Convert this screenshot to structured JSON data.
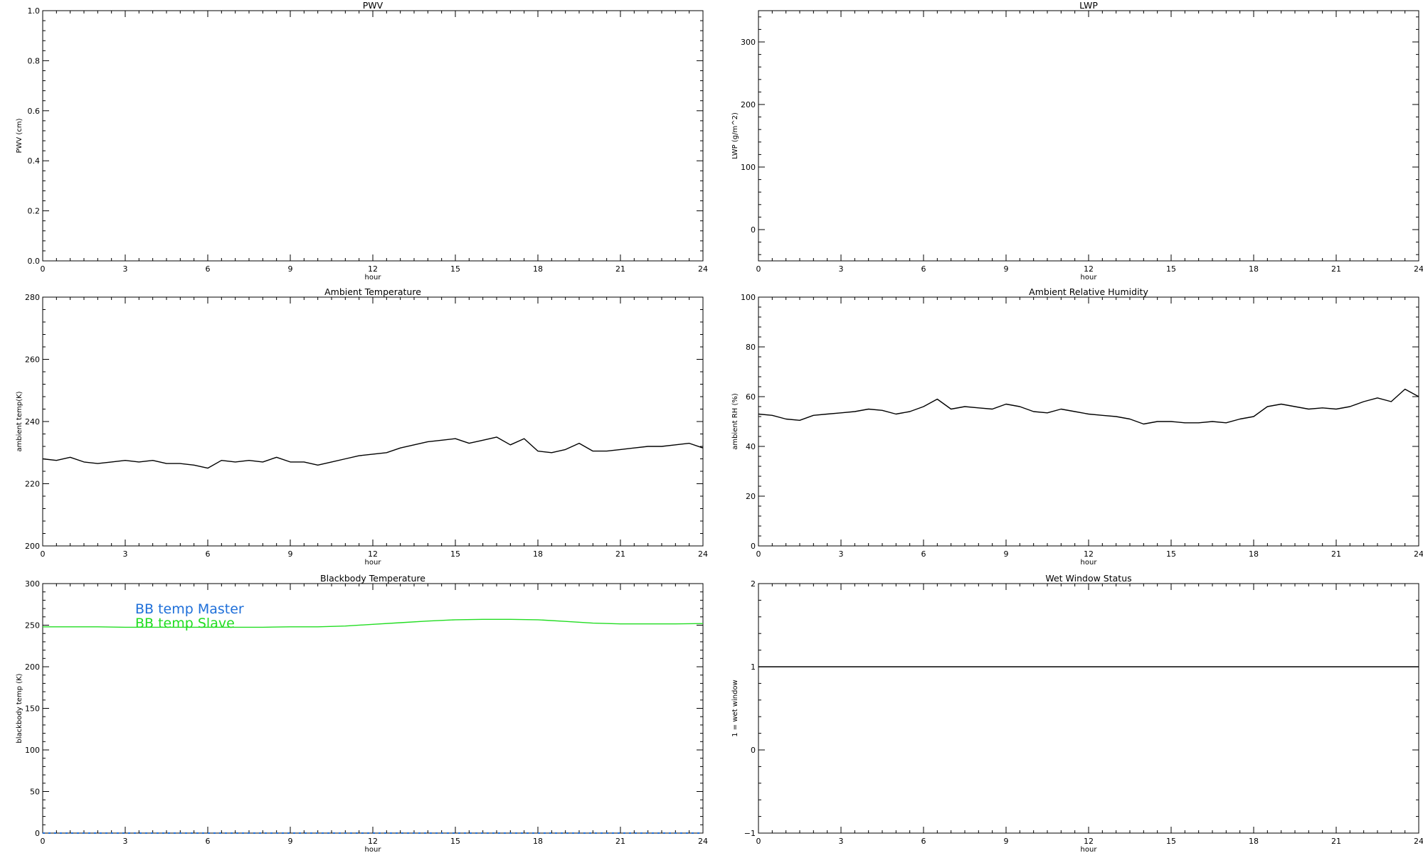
{
  "chart_data": [
    {
      "id": "pwv",
      "type": "line",
      "title": "PWV",
      "xlabel": "hour",
      "ylabel": "PWV (cm)",
      "xlim": [
        0,
        24
      ],
      "ylim": [
        0,
        1
      ],
      "xticks": [
        0,
        3,
        6,
        9,
        12,
        15,
        18,
        21,
        24
      ],
      "xticklabels": [
        "0",
        "3",
        "6",
        "9",
        "12",
        "15",
        "18",
        "21",
        "24"
      ],
      "yticks": [
        0,
        0.2,
        0.4,
        0.6,
        0.8,
        1.0
      ],
      "yticklabels": [
        "0.0",
        "0.2",
        "0.4",
        "0.6",
        "0.8",
        "1.0"
      ],
      "grid": false,
      "series": []
    },
    {
      "id": "lwp",
      "type": "line",
      "title": "LWP",
      "xlabel": "hour",
      "ylabel": "LWP (g/m^2)",
      "xlim": [
        0,
        24
      ],
      "ylim": [
        -50,
        350
      ],
      "xticks": [
        0,
        3,
        6,
        9,
        12,
        15,
        18,
        21,
        24
      ],
      "xticklabels": [
        "0",
        "3",
        "6",
        "9",
        "12",
        "15",
        "18",
        "21",
        "24"
      ],
      "yticks": [
        0,
        100,
        200,
        300
      ],
      "yticklabels": [
        "0",
        "100",
        "200",
        "300"
      ],
      "grid": false,
      "series": []
    },
    {
      "id": "ambient-temperature",
      "type": "line",
      "title": "Ambient Temperature",
      "xlabel": "hour",
      "ylabel": "ambient temp(K)",
      "xlim": [
        0,
        24
      ],
      "ylim": [
        200,
        280
      ],
      "xticks": [
        0,
        3,
        6,
        9,
        12,
        15,
        18,
        21,
        24
      ],
      "xticklabels": [
        "0",
        "3",
        "6",
        "9",
        "12",
        "15",
        "18",
        "21",
        "24"
      ],
      "yticks": [
        200,
        220,
        240,
        260,
        280
      ],
      "yticklabels": [
        "200",
        "220",
        "240",
        "260",
        "280"
      ],
      "grid": false,
      "series": [
        {
          "color": "#000000",
          "x": [
            0,
            0.5,
            1.0,
            1.5,
            2.0,
            2.5,
            3.0,
            3.5,
            4.0,
            4.5,
            5.0,
            5.5,
            6.0,
            6.5,
            7.0,
            7.5,
            8.0,
            8.5,
            9.0,
            9.5,
            10.0,
            10.5,
            11.0,
            11.5,
            12.0,
            12.5,
            13.0,
            13.5,
            14.0,
            14.5,
            15.0,
            15.5,
            16.0,
            16.5,
            17.0,
            17.5,
            18.0,
            18.5,
            19.0,
            19.5,
            20.0,
            20.5,
            21.0,
            21.5,
            22.0,
            22.5,
            23.0,
            23.5,
            24.0
          ],
          "y": [
            228,
            227.5,
            228.5,
            227,
            226.5,
            227,
            227.5,
            227,
            227.5,
            226.5,
            226.5,
            226,
            225,
            227.5,
            227,
            227.5,
            227,
            228.5,
            227,
            227,
            226,
            227,
            228,
            229,
            229.5,
            230,
            231.5,
            232.5,
            233.5,
            234,
            234.5,
            233,
            234,
            235,
            232.5,
            234.5,
            230.5,
            230,
            231,
            233,
            230.5,
            230.5,
            231,
            231.5,
            232,
            232,
            232.5,
            233,
            231.5
          ]
        }
      ]
    },
    {
      "id": "ambient-relative-humidity",
      "type": "line",
      "title": "Ambient Relative Humidity",
      "xlabel": "hour",
      "ylabel": "ambient RH (%)",
      "xlim": [
        0,
        24
      ],
      "ylim": [
        0,
        100
      ],
      "xticks": [
        0,
        3,
        6,
        9,
        12,
        15,
        18,
        21,
        24
      ],
      "xticklabels": [
        "0",
        "3",
        "6",
        "9",
        "12",
        "15",
        "18",
        "21",
        "24"
      ],
      "yticks": [
        0,
        20,
        40,
        60,
        80,
        100
      ],
      "yticklabels": [
        "0",
        "20",
        "40",
        "60",
        "80",
        "100"
      ],
      "grid": false,
      "series": [
        {
          "color": "#000000",
          "x": [
            0,
            0.5,
            1.0,
            1.5,
            2.0,
            2.5,
            3.0,
            3.5,
            4.0,
            4.5,
            5.0,
            5.5,
            6.0,
            6.5,
            7.0,
            7.5,
            8.0,
            8.5,
            9.0,
            9.5,
            10.0,
            10.5,
            11.0,
            11.5,
            12.0,
            12.5,
            13.0,
            13.5,
            14.0,
            14.5,
            15.0,
            15.5,
            16.0,
            16.5,
            17.0,
            17.5,
            18.0,
            18.5,
            19.0,
            19.5,
            20.0,
            20.5,
            21.0,
            21.5,
            22.0,
            22.5,
            23.0,
            23.5,
            24.0
          ],
          "y": [
            53,
            52.5,
            51,
            50.5,
            52.5,
            53,
            53.5,
            54,
            55,
            54.5,
            53,
            54,
            56,
            59,
            55,
            56,
            55.5,
            55,
            57,
            56,
            54,
            53.5,
            55,
            54,
            53,
            52.5,
            52,
            51,
            49,
            50,
            50,
            49.5,
            49.5,
            50,
            49.5,
            51,
            52,
            56,
            57,
            56,
            55,
            55.5,
            55,
            56,
            58,
            59.5,
            58,
            63,
            60
          ]
        }
      ]
    },
    {
      "id": "blackbody-temperature",
      "type": "line",
      "title": "Blackbody Temperature",
      "xlabel": "hour",
      "ylabel": "blackbody temp (K)",
      "xlim": [
        0,
        24
      ],
      "ylim": [
        0,
        300
      ],
      "xticks": [
        0,
        3,
        6,
        9,
        12,
        15,
        18,
        21,
        24
      ],
      "xticklabels": [
        "0",
        "3",
        "6",
        "9",
        "12",
        "15",
        "18",
        "21",
        "24"
      ],
      "yticks": [
        0,
        50,
        100,
        150,
        200,
        250,
        300
      ],
      "yticklabels": [
        "0",
        "50",
        "100",
        "150",
        "200",
        "250",
        "300"
      ],
      "grid": false,
      "legend": "upper-left",
      "series": [
        {
          "name": "BB temp Master",
          "color": "#1e6fd9",
          "dashed": true,
          "x": [
            0,
            3,
            6,
            9,
            12,
            15,
            18,
            21,
            24
          ],
          "y": [
            0,
            0,
            0,
            0,
            0,
            0,
            0,
            0,
            0
          ]
        },
        {
          "name": "BB temp Slave",
          "color": "#22dd22",
          "dashed": false,
          "x": [
            0,
            1,
            2,
            3,
            4,
            5,
            6,
            7,
            8,
            9,
            10,
            11,
            12,
            13,
            14,
            15,
            16,
            17,
            18,
            19,
            20,
            21,
            22,
            23,
            24
          ],
          "y": [
            248,
            248,
            248,
            247.5,
            247.5,
            247.5,
            247.5,
            247.5,
            247.5,
            248,
            248,
            249,
            251,
            253,
            255,
            256.5,
            257,
            257,
            256.5,
            254.5,
            252.5,
            251.5,
            251.5,
            251.5,
            252
          ]
        }
      ]
    },
    {
      "id": "wet-window-status",
      "type": "line",
      "title": "Wet Window Status",
      "xlabel": "hour",
      "ylabel": "1 = wet window",
      "xlim": [
        0,
        24
      ],
      "ylim": [
        -1,
        2
      ],
      "xticks": [
        0,
        3,
        6,
        9,
        12,
        15,
        18,
        21,
        24
      ],
      "xticklabels": [
        "0",
        "3",
        "6",
        "9",
        "12",
        "15",
        "18",
        "21",
        "24"
      ],
      "yticks": [
        -1,
        0,
        1,
        2
      ],
      "yticklabels": [
        "−1",
        "0",
        "1",
        "2"
      ],
      "grid": false,
      "series": [
        {
          "color": "#000000",
          "x": [
            0,
            24
          ],
          "y": [
            1,
            1
          ]
        }
      ]
    }
  ]
}
